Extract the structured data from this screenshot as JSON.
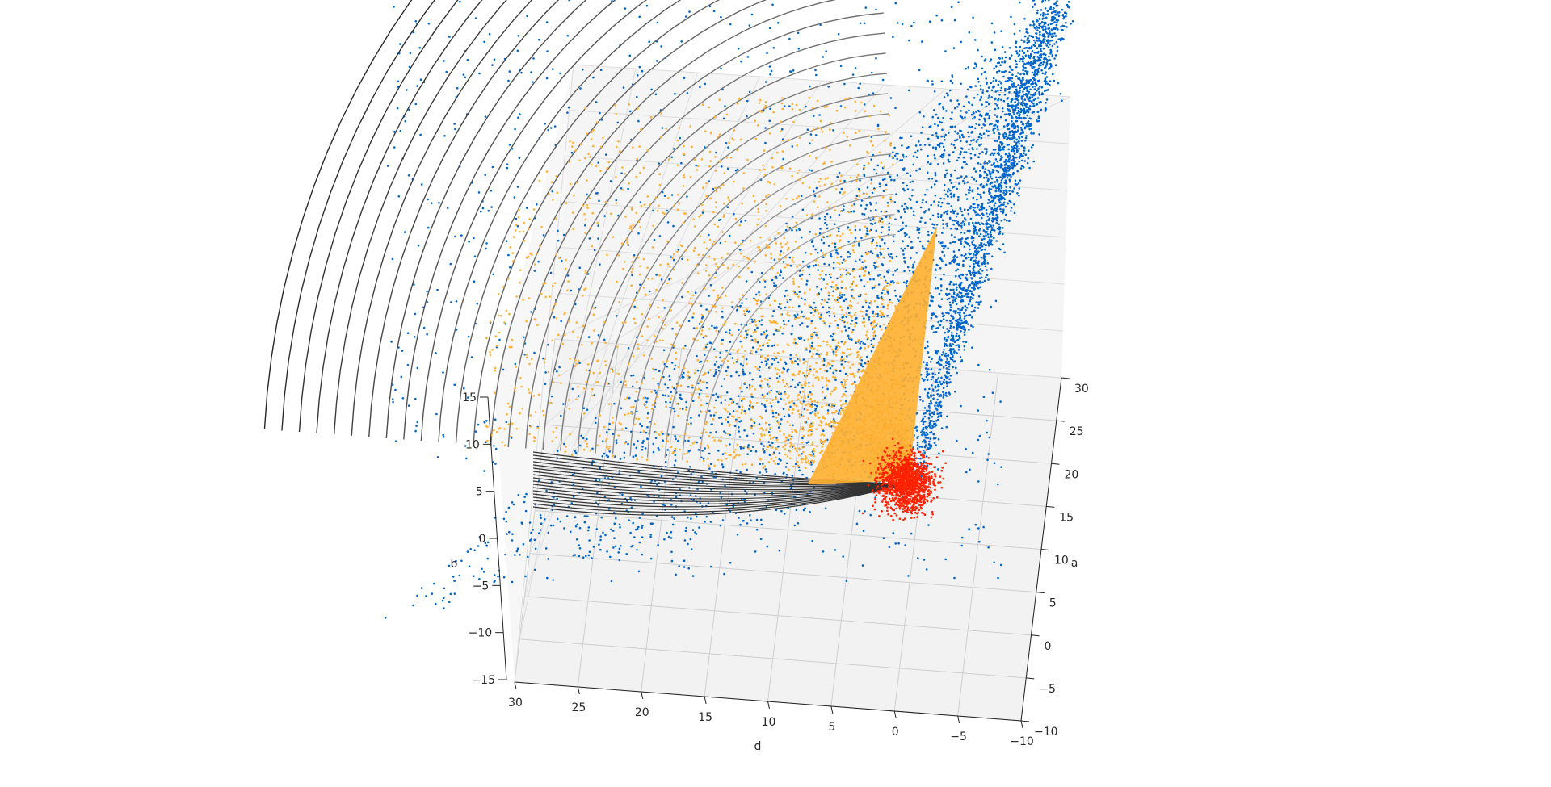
{
  "chart_data": {
    "type": "scatter",
    "projection": "3d",
    "axes": {
      "x": {
        "label": "d",
        "range": [
          -10,
          30
        ],
        "ticks": [
          30,
          25,
          20,
          15,
          10,
          5,
          0,
          -5,
          -10
        ],
        "tick_labels": [
          "30",
          "25",
          "20",
          "15",
          "10",
          "5",
          "0",
          "−5",
          "−10"
        ]
      },
      "y": {
        "label": "a",
        "range": [
          -10,
          30
        ],
        "ticks": [
          30,
          25,
          20,
          15,
          10,
          5,
          0,
          -5,
          -10
        ],
        "tick_labels": [
          "30",
          "25",
          "20",
          "15",
          "10",
          "5",
          "0",
          "−5",
          "−10"
        ]
      },
      "z": {
        "label": "b",
        "range": [
          -15,
          15
        ],
        "ticks": [
          15,
          10,
          5,
          0,
          -5,
          -10,
          -15
        ],
        "tick_labels": [
          "15",
          "10",
          "5",
          "0",
          "−5",
          "−10",
          "−15"
        ]
      }
    },
    "grid": true,
    "legend": "none",
    "series": [
      {
        "kind": "scatter",
        "color": "#0066cc",
        "description_hint": "large spread cloud extending upward-left from near origin"
      },
      {
        "kind": "scatter",
        "color": "#ffb030",
        "description_hint": "dense cone-shaped cloud concentrated near origin"
      },
      {
        "kind": "scatter",
        "color": "#ff2200",
        "center": {
          "d": -2,
          "a": 20,
          "b": -3
        },
        "description_hint": "compact round cluster"
      },
      {
        "kind": "surface-wireframe",
        "color": "#222222",
        "description_hint": "curved shell contour lines"
      }
    ]
  }
}
